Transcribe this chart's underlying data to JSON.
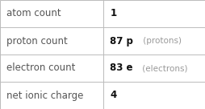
{
  "rows": [
    {
      "label": "atom count",
      "bold": "1",
      "unit": "",
      "extra": ""
    },
    {
      "label": "proton count",
      "bold": "87",
      "unit": " p",
      "extra": " (protons)"
    },
    {
      "label": "electron count",
      "bold": "83",
      "unit": " e",
      "extra": " (electrons)"
    },
    {
      "label": "net ionic charge",
      "bold": "4",
      "unit": "",
      "extra": ""
    }
  ],
  "col_split": 0.505,
  "background": "#ffffff",
  "border_color": "#bbbbbb",
  "text_color_label": "#555555",
  "text_color_bold": "#111111",
  "text_color_extra": "#999999",
  "font_size_label": 8.5,
  "font_size_value": 8.5,
  "font_size_extra": 7.5
}
